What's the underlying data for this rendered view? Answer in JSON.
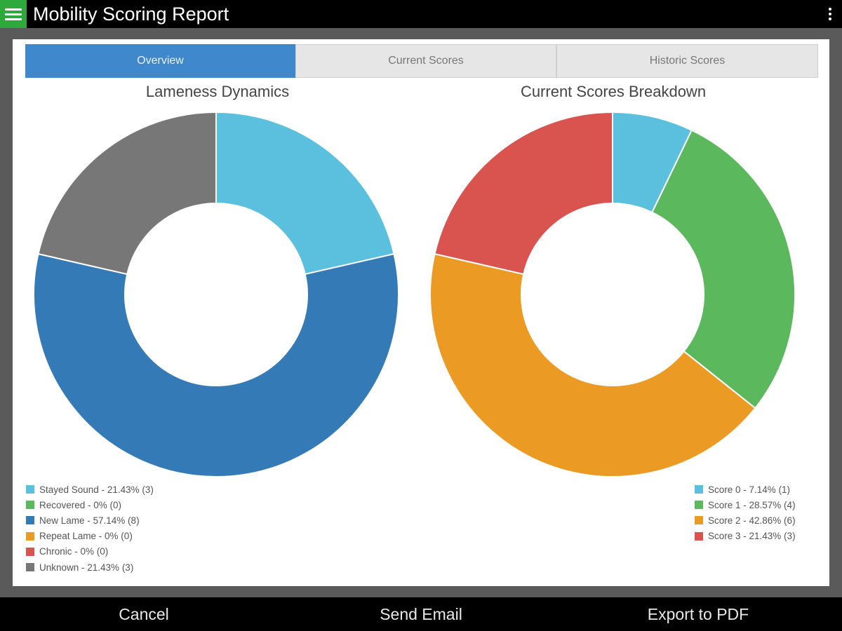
{
  "header": {
    "title": "Mobility Scoring Report"
  },
  "tabs": [
    {
      "label": "Overview",
      "active": true
    },
    {
      "label": "Current Scores",
      "active": false
    },
    {
      "label": "Historic Scores",
      "active": false
    }
  ],
  "actions": {
    "cancel": "Cancel",
    "send_email": "Send Email",
    "export_pdf": "Export to PDF"
  },
  "chart_data": [
    {
      "type": "pie",
      "title": "Lameness Dynamics",
      "categories": [
        "Stayed Sound",
        "Recovered",
        "New Lame",
        "Repeat Lame",
        "Chronic",
        "Unknown"
      ],
      "values": [
        3,
        0,
        8,
        0,
        0,
        3
      ],
      "colors": [
        "#5bc0de",
        "#5cb85c",
        "#337ab7",
        "#eb9a23",
        "#d9534f",
        "#777777"
      ],
      "legend_labels": [
        "Stayed Sound - 21.43% (3)",
        "Recovered - 0% (0)",
        "New Lame - 57.14% (8)",
        "Repeat Lame - 0% (0)",
        "Chronic - 0% (0)",
        "Unknown - 21.43% (3)"
      ],
      "legend_position": "bottom-left"
    },
    {
      "type": "pie",
      "title": "Current Scores Breakdown",
      "categories": [
        "Score 0",
        "Score 1",
        "Score 2",
        "Score 3"
      ],
      "values": [
        1,
        4,
        6,
        3
      ],
      "colors": [
        "#5bc0de",
        "#5cb85c",
        "#eb9a23",
        "#d9534f"
      ],
      "legend_labels": [
        "Score 0 - 7.14% (1)",
        "Score 1 - 28.57% (4)",
        "Score 2 - 42.86% (6)",
        "Score 3 - 21.43% (3)"
      ],
      "legend_position": "bottom-right"
    }
  ]
}
